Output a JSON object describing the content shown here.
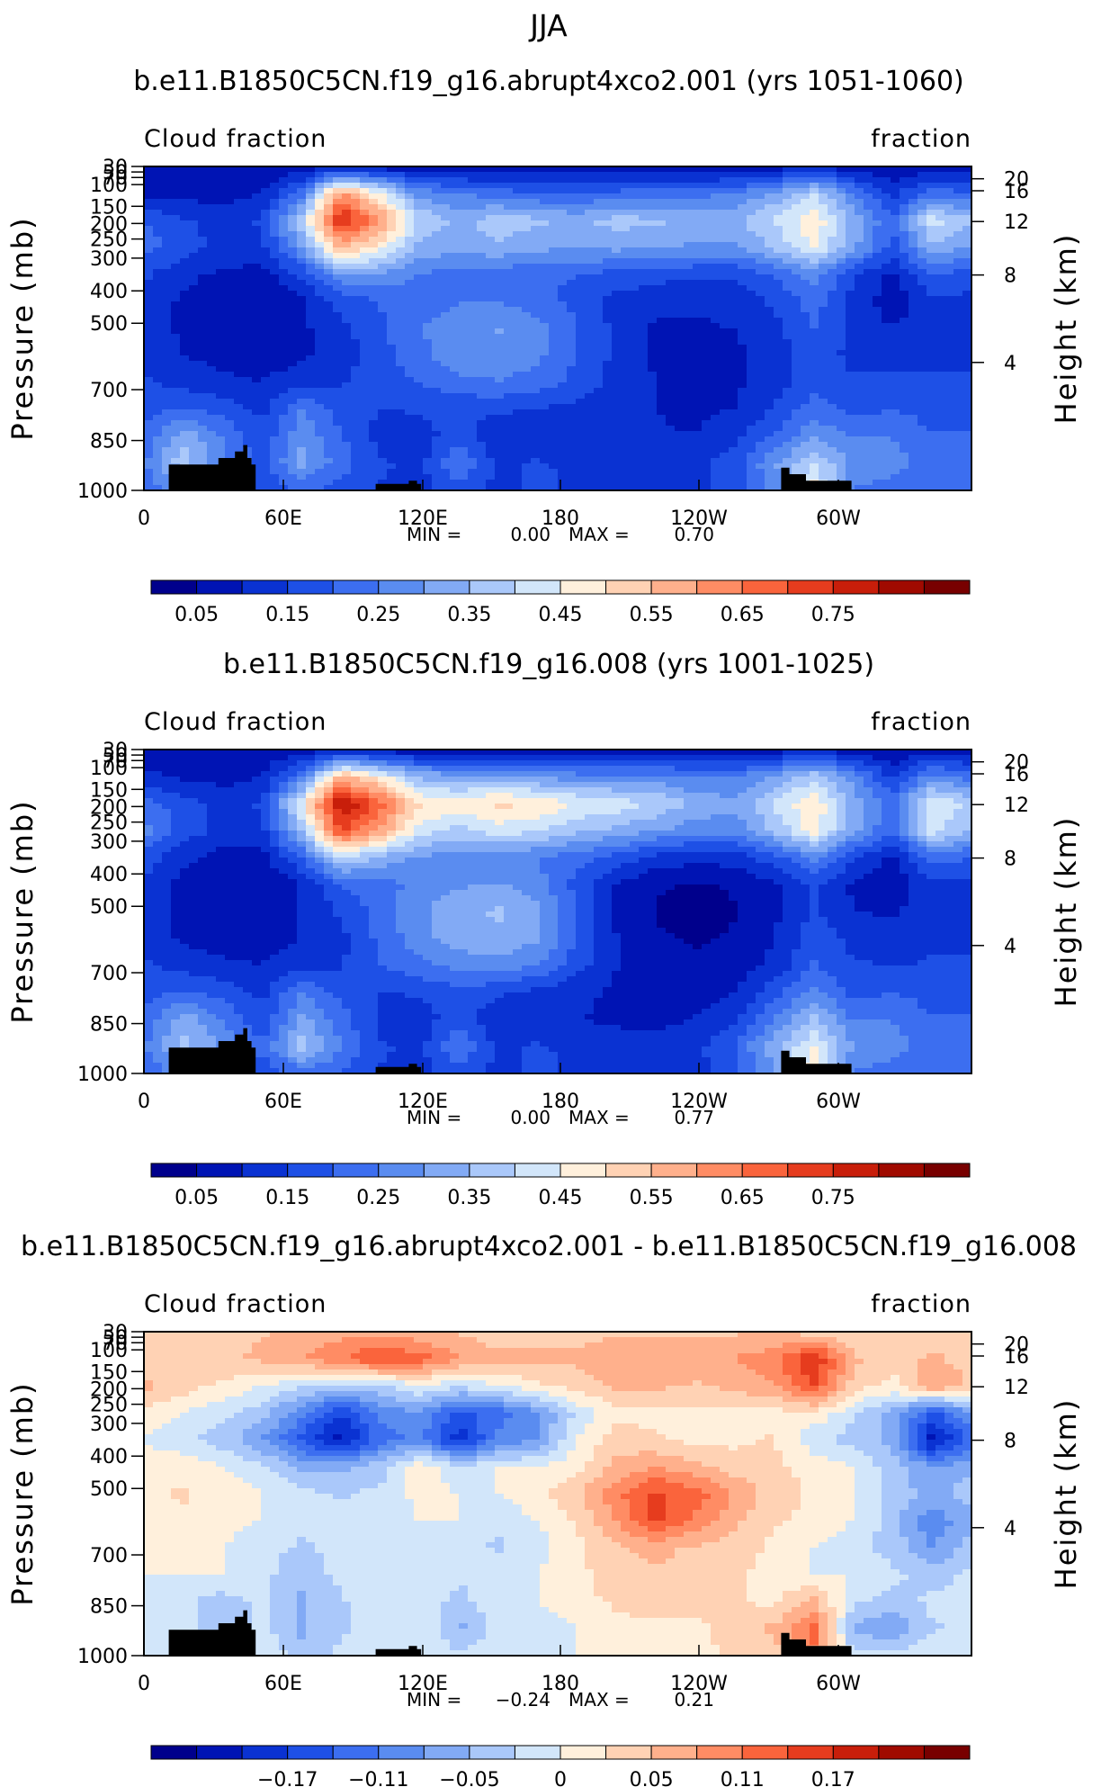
{
  "header": {
    "season": "JJA"
  },
  "chart_data": [
    {
      "type": "heatmap",
      "title": "b.e11.B1850C5CN.f19_g16.abrupt4xco2.001 (yrs 1051-1060)",
      "left_label": "Cloud fraction",
      "right_label": "fraction",
      "ylabel": "Pressure (mb)",
      "ylabel_right": "Height (km)",
      "y_ticks": [
        "30",
        "50",
        "70",
        "100",
        "150",
        "200",
        "250",
        "300",
        "400",
        "500",
        "700",
        "850",
        "1000"
      ],
      "height_ticks": [
        "20",
        "16",
        "12",
        "8",
        "4"
      ],
      "x_ticks": [
        "0",
        "60E",
        "120E",
        "180",
        "120W",
        "60W"
      ],
      "min_label": "MIN =",
      "min_value": "0.00",
      "max_label": "MAX =",
      "max_value": "0.70",
      "colorbar_labels": [
        "0.05",
        "0.15",
        "0.25",
        "0.35",
        "0.45",
        "0.55",
        "0.65",
        "0.75"
      ],
      "colorbar_colors": [
        "#00008c",
        "#0014b4",
        "#0a32d2",
        "#1e50e6",
        "#3c6ef0",
        "#5a8cf0",
        "#82aaf5",
        "#aac8fa",
        "#d2e6fa",
        "#fff0dc",
        "#ffd2b4",
        "#ffb08c",
        "#ff8c64",
        "#fa643c",
        "#e63c1e",
        "#c81e0a",
        "#a00a00",
        "#780000"
      ],
      "vmin": 0.0,
      "vmax": 0.8,
      "field": [
        [
          0.06,
          0.05,
          0.05,
          0.05,
          0.06,
          0.07,
          0.06,
          0.05,
          0.05,
          0.05,
          0.05,
          0.05,
          0.05,
          0.05,
          0.05,
          0.05,
          0.06,
          0.08,
          0.06,
          0.05,
          0.06,
          0.06
        ],
        [
          0.08,
          0.07,
          0.07,
          0.09,
          0.2,
          0.55,
          0.4,
          0.25,
          0.22,
          0.2,
          0.18,
          0.18,
          0.19,
          0.2,
          0.21,
          0.22,
          0.28,
          0.35,
          0.22,
          0.12,
          0.2,
          0.18
        ],
        [
          0.18,
          0.14,
          0.12,
          0.14,
          0.35,
          0.68,
          0.55,
          0.35,
          0.3,
          0.34,
          0.32,
          0.3,
          0.33,
          0.32,
          0.3,
          0.3,
          0.36,
          0.44,
          0.3,
          0.18,
          0.38,
          0.32
        ],
        [
          0.2,
          0.15,
          0.12,
          0.12,
          0.26,
          0.5,
          0.42,
          0.3,
          0.28,
          0.3,
          0.28,
          0.27,
          0.28,
          0.27,
          0.26,
          0.26,
          0.32,
          0.4,
          0.28,
          0.16,
          0.3,
          0.26
        ],
        [
          0.14,
          0.1,
          0.08,
          0.07,
          0.14,
          0.26,
          0.26,
          0.22,
          0.2,
          0.2,
          0.18,
          0.18,
          0.16,
          0.15,
          0.14,
          0.14,
          0.18,
          0.24,
          0.14,
          0.08,
          0.18,
          0.16
        ],
        [
          0.12,
          0.08,
          0.06,
          0.05,
          0.08,
          0.15,
          0.18,
          0.2,
          0.22,
          0.22,
          0.2,
          0.16,
          0.12,
          0.1,
          0.1,
          0.11,
          0.14,
          0.2,
          0.12,
          0.06,
          0.12,
          0.12
        ],
        [
          0.12,
          0.08,
          0.06,
          0.06,
          0.08,
          0.12,
          0.17,
          0.22,
          0.25,
          0.27,
          0.24,
          0.18,
          0.12,
          0.08,
          0.08,
          0.09,
          0.12,
          0.18,
          0.12,
          0.09,
          0.12,
          0.12
        ],
        [
          0.12,
          0.09,
          0.07,
          0.06,
          0.08,
          0.11,
          0.16,
          0.21,
          0.25,
          0.26,
          0.23,
          0.18,
          0.12,
          0.08,
          0.07,
          0.08,
          0.11,
          0.16,
          0.12,
          0.12,
          0.12,
          0.12
        ],
        [
          0.14,
          0.12,
          0.1,
          0.09,
          0.12,
          0.13,
          0.16,
          0.18,
          0.21,
          0.22,
          0.2,
          0.16,
          0.12,
          0.09,
          0.08,
          0.08,
          0.11,
          0.16,
          0.14,
          0.14,
          0.14,
          0.14
        ],
        [
          0.16,
          0.18,
          0.16,
          0.12,
          0.22,
          0.16,
          0.13,
          0.14,
          0.14,
          0.14,
          0.13,
          0.12,
          0.11,
          0.09,
          0.08,
          0.09,
          0.14,
          0.2,
          0.16,
          0.18,
          0.16,
          0.16
        ],
        [
          0.18,
          0.3,
          0.22,
          0.14,
          0.26,
          0.18,
          0.12,
          0.11,
          0.16,
          0.1,
          0.1,
          0.1,
          0.1,
          0.09,
          0.09,
          0.12,
          0.18,
          0.26,
          0.22,
          0.22,
          0.18,
          0.18
        ],
        [
          0.22,
          0.34,
          0.24,
          0.16,
          0.28,
          0.2,
          0.14,
          0.12,
          0.22,
          0.12,
          0.14,
          0.12,
          0.12,
          0.11,
          0.12,
          0.16,
          0.26,
          0.36,
          0.26,
          0.24,
          0.2,
          0.2
        ],
        [
          0.18,
          0.26,
          0.2,
          0.14,
          0.18,
          0.16,
          0.13,
          0.12,
          0.16,
          0.12,
          0.14,
          0.13,
          0.12,
          0.12,
          0.12,
          0.16,
          0.24,
          0.42,
          0.22,
          0.2,
          0.18,
          0.18
        ]
      ]
    },
    {
      "type": "heatmap",
      "title": "b.e11.B1850C5CN.f19_g16.008 (yrs 1001-1025)",
      "left_label": "Cloud fraction",
      "right_label": "fraction",
      "ylabel": "Pressure (mb)",
      "ylabel_right": "Height (km)",
      "y_ticks": [
        "30",
        "50",
        "70",
        "100",
        "150",
        "200",
        "250",
        "300",
        "400",
        "500",
        "700",
        "850",
        "1000"
      ],
      "height_ticks": [
        "20",
        "16",
        "12",
        "8",
        "4"
      ],
      "x_ticks": [
        "0",
        "60E",
        "120E",
        "180",
        "120W",
        "60W"
      ],
      "min_label": "MIN =",
      "min_value": "0.00",
      "max_label": "MAX =",
      "max_value": "0.77",
      "colorbar_labels": [
        "0.05",
        "0.15",
        "0.25",
        "0.35",
        "0.45",
        "0.55",
        "0.65",
        "0.75"
      ],
      "colorbar_colors": [
        "#00008c",
        "#0014b4",
        "#0a32d2",
        "#1e50e6",
        "#3c6ef0",
        "#5a8cf0",
        "#82aaf5",
        "#aac8fa",
        "#d2e6fa",
        "#fff0dc",
        "#ffd2b4",
        "#ffb08c",
        "#ff8c64",
        "#fa643c",
        "#e63c1e",
        "#c81e0a",
        "#a00a00",
        "#780000"
      ],
      "vmin": 0.0,
      "vmax": 0.8,
      "field": [
        [
          0.06,
          0.05,
          0.05,
          0.05,
          0.06,
          0.07,
          0.06,
          0.05,
          0.05,
          0.05,
          0.05,
          0.05,
          0.05,
          0.05,
          0.05,
          0.05,
          0.06,
          0.08,
          0.06,
          0.05,
          0.06,
          0.06
        ],
        [
          0.1,
          0.08,
          0.07,
          0.09,
          0.22,
          0.5,
          0.42,
          0.3,
          0.28,
          0.28,
          0.26,
          0.24,
          0.24,
          0.24,
          0.22,
          0.22,
          0.28,
          0.34,
          0.24,
          0.12,
          0.24,
          0.2
        ],
        [
          0.2,
          0.15,
          0.12,
          0.14,
          0.4,
          0.72,
          0.6,
          0.45,
          0.42,
          0.46,
          0.44,
          0.4,
          0.38,
          0.35,
          0.3,
          0.28,
          0.36,
          0.44,
          0.3,
          0.2,
          0.4,
          0.34
        ],
        [
          0.24,
          0.16,
          0.12,
          0.12,
          0.32,
          0.64,
          0.52,
          0.38,
          0.34,
          0.38,
          0.36,
          0.32,
          0.3,
          0.27,
          0.24,
          0.24,
          0.32,
          0.42,
          0.28,
          0.18,
          0.38,
          0.3
        ],
        [
          0.16,
          0.1,
          0.07,
          0.07,
          0.18,
          0.36,
          0.3,
          0.26,
          0.24,
          0.24,
          0.22,
          0.2,
          0.16,
          0.12,
          0.1,
          0.11,
          0.16,
          0.24,
          0.14,
          0.08,
          0.2,
          0.18
        ],
        [
          0.12,
          0.07,
          0.05,
          0.05,
          0.09,
          0.18,
          0.2,
          0.24,
          0.26,
          0.27,
          0.24,
          0.16,
          0.08,
          0.05,
          0.04,
          0.05,
          0.08,
          0.14,
          0.08,
          0.06,
          0.12,
          0.12
        ],
        [
          0.12,
          0.07,
          0.05,
          0.05,
          0.09,
          0.14,
          0.2,
          0.26,
          0.3,
          0.32,
          0.28,
          0.18,
          0.08,
          0.04,
          0.03,
          0.04,
          0.08,
          0.14,
          0.09,
          0.08,
          0.12,
          0.12
        ],
        [
          0.12,
          0.08,
          0.06,
          0.06,
          0.09,
          0.12,
          0.19,
          0.25,
          0.29,
          0.3,
          0.27,
          0.18,
          0.09,
          0.05,
          0.04,
          0.05,
          0.09,
          0.16,
          0.12,
          0.11,
          0.12,
          0.12
        ],
        [
          0.14,
          0.12,
          0.1,
          0.09,
          0.12,
          0.13,
          0.18,
          0.21,
          0.24,
          0.25,
          0.22,
          0.15,
          0.09,
          0.06,
          0.05,
          0.06,
          0.1,
          0.18,
          0.14,
          0.13,
          0.14,
          0.14
        ],
        [
          0.16,
          0.18,
          0.16,
          0.12,
          0.22,
          0.16,
          0.13,
          0.14,
          0.16,
          0.14,
          0.12,
          0.1,
          0.08,
          0.07,
          0.07,
          0.09,
          0.16,
          0.24,
          0.16,
          0.18,
          0.16,
          0.16
        ],
        [
          0.18,
          0.3,
          0.22,
          0.14,
          0.28,
          0.2,
          0.12,
          0.11,
          0.16,
          0.1,
          0.1,
          0.09,
          0.08,
          0.08,
          0.09,
          0.13,
          0.22,
          0.32,
          0.22,
          0.22,
          0.18,
          0.18
        ],
        [
          0.22,
          0.32,
          0.26,
          0.18,
          0.34,
          0.22,
          0.14,
          0.12,
          0.22,
          0.12,
          0.14,
          0.12,
          0.11,
          0.1,
          0.12,
          0.18,
          0.3,
          0.4,
          0.26,
          0.24,
          0.2,
          0.2
        ],
        [
          0.18,
          0.26,
          0.2,
          0.14,
          0.2,
          0.18,
          0.13,
          0.12,
          0.16,
          0.12,
          0.14,
          0.13,
          0.12,
          0.12,
          0.12,
          0.16,
          0.26,
          0.46,
          0.22,
          0.2,
          0.18,
          0.18
        ]
      ]
    },
    {
      "type": "heatmap",
      "title": "b.e11.B1850C5CN.f19_g16.abrupt4xco2.001 - b.e11.B1850C5CN.f19_g16.008",
      "left_label": "Cloud fraction",
      "right_label": "fraction",
      "ylabel": "Pressure (mb)",
      "ylabel_right": "Height (km)",
      "y_ticks": [
        "30",
        "50",
        "70",
        "100",
        "150",
        "200",
        "250",
        "300",
        "400",
        "500",
        "700",
        "850",
        "1000"
      ],
      "height_ticks": [
        "20",
        "16",
        "12",
        "8",
        "4"
      ],
      "x_ticks": [
        "0",
        "60E",
        "120E",
        "180",
        "120W",
        "60W"
      ],
      "min_label": "MIN =",
      "min_value": "−0.24",
      "max_label": "MAX =",
      "max_value": "0.21",
      "colorbar_labels": [
        "−0.17",
        "−0.11",
        "−0.05",
        "0",
        "0.05",
        "0.11",
        "0.17"
      ],
      "colorbar_colors": [
        "#00008c",
        "#0014b4",
        "#0a32d2",
        "#1e50e6",
        "#3c6ef0",
        "#5a8cf0",
        "#82aaf5",
        "#aac8fa",
        "#d2e6fa",
        "#fff0dc",
        "#ffd2b4",
        "#ffb08c",
        "#ff8c64",
        "#fa643c",
        "#e63c1e",
        "#c81e0a",
        "#a00a00",
        "#780000"
      ],
      "vmin": -0.24,
      "vmax": 0.24,
      "field": [
        [
          0.03,
          0.03,
          0.04,
          0.05,
          0.06,
          0.07,
          0.07,
          0.06,
          0.05,
          0.04,
          0.04,
          0.04,
          0.05,
          0.05,
          0.05,
          0.05,
          0.05,
          0.04,
          0.03,
          0.03,
          0.03,
          0.03
        ],
        [
          0.04,
          0.03,
          0.05,
          0.06,
          0.08,
          0.1,
          0.14,
          0.12,
          0.08,
          0.06,
          0.06,
          0.06,
          0.08,
          0.08,
          0.07,
          0.08,
          0.1,
          0.16,
          0.06,
          0.03,
          0.06,
          0.04
        ],
        [
          0.06,
          0.04,
          0.02,
          0.0,
          -0.02,
          -0.04,
          -0.03,
          0.0,
          -0.02,
          0.0,
          0.02,
          0.04,
          0.06,
          0.06,
          0.05,
          0.06,
          0.08,
          0.14,
          0.04,
          0.02,
          0.08,
          0.05
        ],
        [
          0.02,
          0.0,
          -0.02,
          -0.04,
          -0.1,
          -0.16,
          -0.1,
          -0.08,
          -0.14,
          -0.12,
          -0.08,
          -0.02,
          0.02,
          0.02,
          0.02,
          0.02,
          0.02,
          0.02,
          -0.02,
          -0.06,
          -0.14,
          -0.08
        ],
        [
          0.0,
          -0.02,
          -0.04,
          -0.08,
          -0.14,
          -0.2,
          -0.12,
          -0.1,
          -0.18,
          -0.1,
          -0.08,
          0.0,
          0.04,
          0.03,
          0.02,
          0.02,
          0.03,
          -0.02,
          -0.04,
          -0.06,
          -0.2,
          -0.12
        ],
        [
          0.01,
          0.02,
          0.0,
          -0.02,
          -0.06,
          -0.06,
          -0.04,
          0.02,
          -0.02,
          0.0,
          0.0,
          0.02,
          0.06,
          0.08,
          0.06,
          0.04,
          0.03,
          0.02,
          0.0,
          -0.04,
          -0.08,
          -0.06
        ],
        [
          0.02,
          0.03,
          0.02,
          0.0,
          -0.02,
          -0.03,
          -0.02,
          0.01,
          0.0,
          0.0,
          0.02,
          0.05,
          0.1,
          0.14,
          0.12,
          0.08,
          0.04,
          0.02,
          0.0,
          -0.04,
          -0.06,
          -0.04
        ],
        [
          0.02,
          0.02,
          0.01,
          0.0,
          -0.02,
          -0.02,
          -0.02,
          0.0,
          0.0,
          -0.02,
          0.0,
          0.03,
          0.08,
          0.14,
          0.1,
          0.06,
          0.03,
          0.02,
          0.0,
          -0.04,
          -0.1,
          -0.06
        ],
        [
          0.01,
          0.02,
          0.0,
          -0.02,
          -0.03,
          -0.02,
          -0.02,
          -0.02,
          -0.02,
          -0.03,
          -0.01,
          0.02,
          0.05,
          0.06,
          0.05,
          0.04,
          0.02,
          0.0,
          -0.02,
          -0.04,
          -0.08,
          -0.04
        ],
        [
          0.0,
          0.0,
          0.0,
          -0.02,
          -0.04,
          -0.02,
          -0.01,
          0.0,
          -0.02,
          -0.01,
          0.0,
          0.02,
          0.04,
          0.05,
          0.04,
          0.03,
          0.02,
          0.0,
          0.0,
          -0.02,
          -0.04,
          -0.02
        ],
        [
          0.0,
          -0.02,
          -0.04,
          -0.02,
          -0.06,
          -0.03,
          -0.01,
          0.0,
          -0.04,
          0.0,
          0.0,
          0.02,
          0.03,
          0.04,
          0.04,
          0.03,
          0.02,
          0.06,
          -0.02,
          -0.04,
          -0.02,
          -0.01
        ],
        [
          0.0,
          -0.02,
          -0.04,
          -0.02,
          -0.06,
          -0.03,
          -0.02,
          0.0,
          -0.06,
          -0.02,
          -0.02,
          0.0,
          0.02,
          0.02,
          0.02,
          0.04,
          0.06,
          0.12,
          -0.06,
          -0.08,
          -0.03,
          -0.02
        ],
        [
          0.0,
          0.0,
          -0.02,
          0.0,
          -0.04,
          -0.02,
          0.0,
          0.0,
          -0.02,
          0.0,
          0.0,
          0.0,
          0.01,
          0.02,
          0.02,
          0.03,
          0.04,
          0.1,
          -0.02,
          -0.02,
          0.0,
          0.0
        ]
      ]
    }
  ]
}
